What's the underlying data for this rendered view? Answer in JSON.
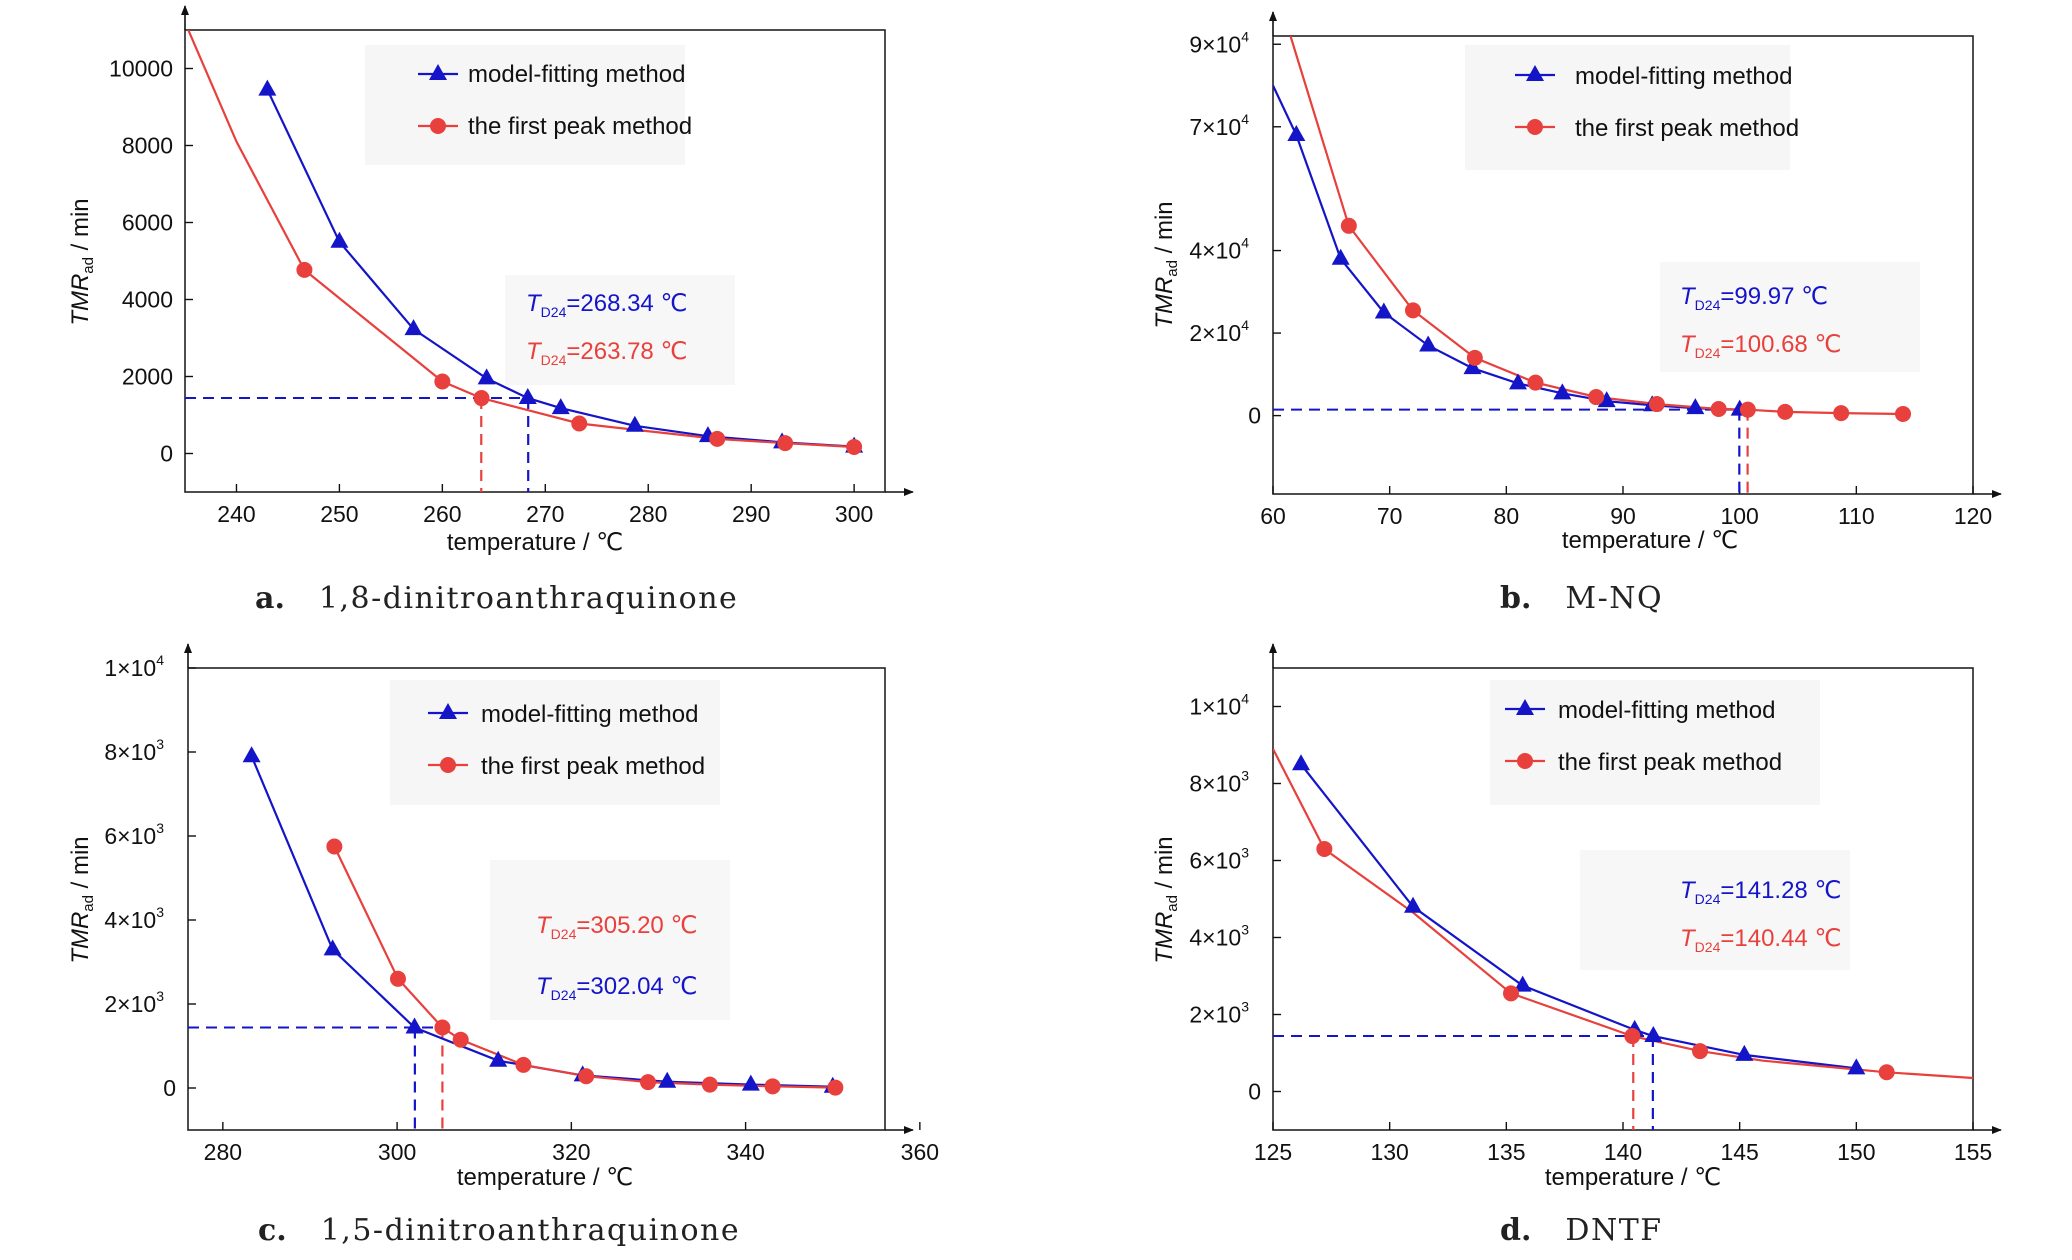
{
  "colors": {
    "model": "#1414c8",
    "first_peak": "#e8403c",
    "axis": "#111111"
  },
  "panels": [
    {
      "caption_letter": "a.",
      "caption_text": "1,8-dinitroanthraquinone",
      "xlabel": "temperature / ℃",
      "ylabel_main": "TMR",
      "ylabel_sub": "ad",
      "ylabel_unit": " / min",
      "legend": {
        "model": "model-fitting method",
        "first_peak": "the first peak method"
      },
      "ann": [
        {
          "sub": "D24",
          "value": "=268.34 ℃",
          "color": "model"
        },
        {
          "sub": "D24",
          "value": "=263.78 ℃",
          "color": "first_peak"
        }
      ]
    },
    {
      "caption_letter": "b.",
      "caption_text": "M-NQ",
      "xlabel": "temperature / ℃",
      "ylabel_main": "TMR",
      "ylabel_sub": "ad",
      "ylabel_unit": " / min",
      "legend": {
        "model": "model-fitting method",
        "first_peak": "the first peak method"
      },
      "ann": [
        {
          "sub": "D24",
          "value": "=99.97 ℃",
          "color": "model"
        },
        {
          "sub": "D24",
          "value": "=100.68 ℃",
          "color": "first_peak"
        }
      ]
    },
    {
      "caption_letter": "c.",
      "caption_text": "1,5-dinitroanthraquinone",
      "xlabel": "temperature / ℃",
      "ylabel_main": "TMR",
      "ylabel_sub": "ad",
      "ylabel_unit": " / min",
      "legend": {
        "model": "model-fitting method",
        "first_peak": "the first peak method"
      },
      "ann": [
        {
          "sub": "D24",
          "value": "=305.20 ℃",
          "color": "first_peak"
        },
        {
          "sub": "D24",
          "value": "=302.04 ℃",
          "color": "model"
        }
      ]
    },
    {
      "caption_letter": "d.",
      "caption_text": "DNTF",
      "xlabel": "temperature / ℃",
      "ylabel_main": "TMR",
      "ylabel_sub": "ad",
      "ylabel_unit": " / min",
      "legend": {
        "model": "model-fitting method",
        "first_peak": "the first peak method"
      },
      "ann": [
        {
          "sub": "D24",
          "value": "=141.28 ℃",
          "color": "model"
        },
        {
          "sub": "D24",
          "value": "=140.44 ℃",
          "color": "first_peak"
        }
      ]
    }
  ],
  "chart_data": [
    {
      "type": "line",
      "xlim": [
        235,
        303
      ],
      "ylim": [
        -1000,
        11000
      ],
      "xticks": [
        240,
        250,
        260,
        270,
        280,
        290,
        300
      ],
      "yticks": [
        {
          "v": 0,
          "t": "0"
        },
        {
          "v": 2000,
          "t": "2000"
        },
        {
          "v": 4000,
          "t": "4000"
        },
        {
          "v": 6000,
          "t": "6000"
        },
        {
          "v": 8000,
          "t": "8000"
        },
        {
          "v": 10000,
          "t": "10000"
        }
      ],
      "threshold": 1440,
      "td24": {
        "model": 268.34,
        "first_peak": 263.78
      },
      "series": [
        {
          "name": "model-fitting method",
          "color": "model",
          "marker": "triangle",
          "x": [
            243,
            250,
            257.2,
            264.3,
            268.3,
            271.5,
            278.7,
            285.8,
            293,
            300
          ],
          "y": [
            9450,
            5500,
            3230,
            1950,
            1440,
            1180,
            720,
            450,
            290,
            180
          ]
        },
        {
          "name": "the first peak method",
          "color": "first_peak",
          "marker": "circle",
          "x": [
            246.6,
            260,
            263.8,
            273.3,
            286.7,
            293.3,
            300
          ],
          "y": [
            4770,
            1870,
            1440,
            780,
            380,
            270,
            170
          ]
        }
      ],
      "curve": {
        "model": [],
        "first_peak": [
          [
            235,
            11200
          ],
          [
            240,
            8100
          ],
          [
            246.6,
            4770
          ],
          [
            260,
            1870
          ],
          [
            263.8,
            1440
          ],
          [
            273.3,
            780
          ],
          [
            286.7,
            380
          ],
          [
            293.3,
            270
          ],
          [
            300,
            170
          ]
        ]
      }
    },
    {
      "type": "line",
      "xlim": [
        60,
        120
      ],
      "ylim": [
        -19000,
        92000
      ],
      "xticks": [
        60,
        70,
        80,
        90,
        100,
        110,
        120
      ],
      "yticks": [
        {
          "v": 0,
          "t": "0"
        },
        {
          "v": 20000,
          "t": "2×10",
          "e": "4"
        },
        {
          "v": 40000,
          "t": "4×10",
          "e": "4"
        },
        {
          "v": 70000,
          "t": "7×10",
          "e": "4"
        },
        {
          "v": 90000,
          "t": "9×10",
          "e": "4"
        }
      ],
      "threshold": 1440,
      "td24": {
        "model": 99.97,
        "first_peak": 100.68
      },
      "series": [
        {
          "name": "model-fitting method",
          "color": "model",
          "marker": "triangle",
          "x": [
            62,
            65.8,
            69.5,
            73.3,
            77.1,
            81,
            84.8,
            88.6,
            92.5,
            96.2,
            100
          ],
          "y": [
            68000,
            38000,
            25000,
            17000,
            11500,
            7800,
            5400,
            3500,
            2500,
            1800,
            1440
          ]
        },
        {
          "name": "the first peak method",
          "color": "first_peak",
          "marker": "circle",
          "x": [
            66.5,
            72,
            77.3,
            82.5,
            87.7,
            92.9,
            98.2,
            100.7,
            103.9,
            108.7,
            114
          ],
          "y": [
            46000,
            25500,
            14000,
            8000,
            4500,
            2800,
            1600,
            1440,
            900,
            600,
            400
          ]
        }
      ],
      "curve": {
        "model": [
          [
            60,
            80000
          ],
          [
            62,
            68000
          ],
          [
            65.8,
            38000
          ],
          [
            69.5,
            25000
          ],
          [
            73.3,
            17000
          ],
          [
            77.1,
            11500
          ],
          [
            81,
            7800
          ],
          [
            84.8,
            5400
          ],
          [
            88.6,
            3500
          ],
          [
            92.5,
            2500
          ],
          [
            96.2,
            1800
          ],
          [
            100,
            1440
          ]
        ],
        "first_peak": [
          [
            61.5,
            92000
          ],
          [
            66.5,
            46000
          ],
          [
            72,
            25500
          ],
          [
            77.3,
            14000
          ],
          [
            82.5,
            8000
          ],
          [
            87.7,
            4500
          ],
          [
            92.9,
            2800
          ],
          [
            98.2,
            1600
          ],
          [
            100.7,
            1440
          ],
          [
            103.9,
            900
          ],
          [
            108.7,
            600
          ],
          [
            114,
            400
          ]
        ]
      }
    },
    {
      "type": "line",
      "xlim": [
        276,
        356
      ],
      "ylim": [
        -1000,
        10000
      ],
      "xticks": [
        280,
        300,
        320,
        340,
        360
      ],
      "yticks": [
        {
          "v": 0,
          "t": "0"
        },
        {
          "v": 2000,
          "t": "2×10",
          "e": "3"
        },
        {
          "v": 4000,
          "t": "4×10",
          "e": "3"
        },
        {
          "v": 6000,
          "t": "6×10",
          "e": "3"
        },
        {
          "v": 8000,
          "t": "8×10",
          "e": "3"
        },
        {
          "v": 10000,
          "t": "1×10",
          "e": "4"
        }
      ],
      "threshold": 1440,
      "td24": {
        "model": 302.04,
        "first_peak": 305.2
      },
      "series": [
        {
          "name": "model-fitting method",
          "color": "model",
          "marker": "triangle",
          "x": [
            283.3,
            292.6,
            302,
            311.6,
            321.3,
            331,
            340.6,
            350
          ],
          "y": [
            7900,
            3300,
            1440,
            650,
            300,
            150,
            80,
            30
          ]
        },
        {
          "name": "the first peak method",
          "color": "first_peak",
          "marker": "circle",
          "x": [
            292.8,
            300.1,
            305.2,
            307.3,
            314.5,
            321.7,
            328.8,
            335.9,
            343.1,
            350.3
          ],
          "y": [
            5750,
            2600,
            1440,
            1150,
            550,
            280,
            140,
            80,
            40,
            10
          ]
        }
      ],
      "curve": {
        "model": [],
        "first_peak": []
      }
    },
    {
      "type": "line",
      "xlim": [
        125,
        155
      ],
      "ylim": [
        -1000,
        11000
      ],
      "xticks": [
        125,
        130,
        135,
        140,
        145,
        150,
        155
      ],
      "yticks": [
        {
          "v": 0,
          "t": "0"
        },
        {
          "v": 2000,
          "t": "2×10",
          "e": "3"
        },
        {
          "v": 4000,
          "t": "4×10",
          "e": "3"
        },
        {
          "v": 6000,
          "t": "6×10",
          "e": "3"
        },
        {
          "v": 8000,
          "t": "8×10",
          "e": "3"
        },
        {
          "v": 10000,
          "t": "1×10",
          "e": "4"
        }
      ],
      "threshold": 1440,
      "td24": {
        "model": 141.28,
        "first_peak": 140.44
      },
      "series": [
        {
          "name": "model-fitting method",
          "color": "model",
          "marker": "triangle",
          "x": [
            126.2,
            131,
            135.7,
            140.5,
            141.3,
            145.2,
            150
          ],
          "y": [
            8500,
            4800,
            2750,
            1600,
            1440,
            950,
            600
          ]
        },
        {
          "name": "the first peak method",
          "color": "first_peak",
          "marker": "circle",
          "x": [
            127.2,
            135.2,
            140.4,
            143.3,
            151.3
          ],
          "y": [
            6300,
            2550,
            1440,
            1050,
            500
          ]
        }
      ],
      "curve": {
        "model": [],
        "first_peak": [
          [
            125,
            8900
          ],
          [
            127.2,
            6300
          ],
          [
            131,
            4650
          ],
          [
            135.2,
            2550
          ],
          [
            140.4,
            1440
          ],
          [
            143.3,
            1050
          ],
          [
            146,
            800
          ],
          [
            151.3,
            500
          ],
          [
            155,
            350
          ]
        ]
      }
    }
  ]
}
